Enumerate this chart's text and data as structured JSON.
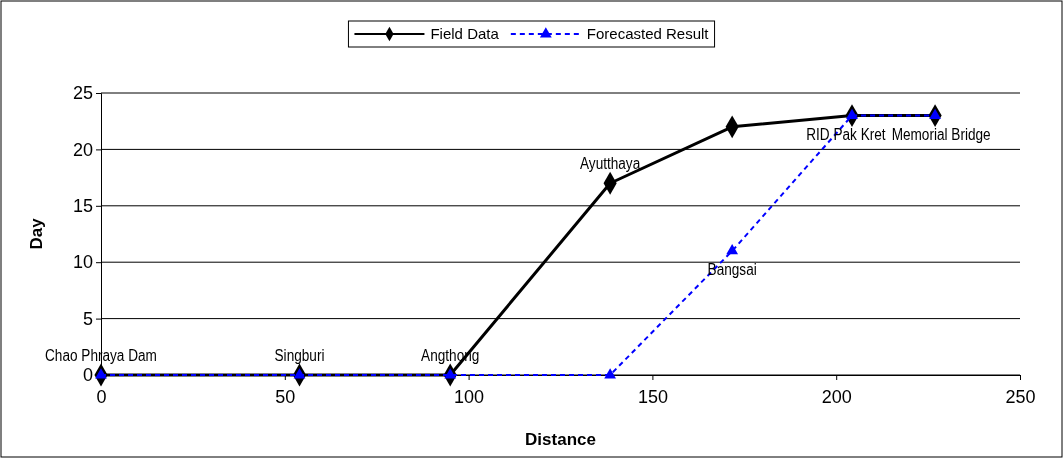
{
  "chart_data": {
    "type": "line",
    "xlabel": "Distance",
    "ylabel": "Day",
    "xlim": [
      0,
      250
    ],
    "xticks": [
      0,
      50,
      100,
      150,
      200,
      250
    ],
    "ylim": [
      0,
      25
    ],
    "yticks": [
      0,
      5,
      10,
      15,
      20,
      25
    ],
    "grid": "y",
    "legend": "top",
    "series": [
      {
        "name": "Field Data",
        "color": "#000000",
        "marker": "diamond",
        "line_style": "solid",
        "x": [
          0,
          54,
          95,
          138.5,
          171.7,
          204.3,
          226.9
        ],
        "values": [
          0,
          0,
          0,
          17,
          22,
          23,
          23
        ]
      },
      {
        "name": "Forecasted Result",
        "color": "#0000ff",
        "marker": "triangle",
        "line_style": "dashed",
        "x": [
          0,
          54,
          95,
          138.5,
          171.7,
          204.3,
          226.9
        ],
        "values": [
          0,
          0,
          0,
          0,
          11,
          23,
          23
        ]
      }
    ],
    "annotations": [
      {
        "text": "Chao Phraya Dam",
        "x": 0,
        "y": 0
      },
      {
        "text": "Singburi",
        "x": 54,
        "y": 0
      },
      {
        "text": "Angthong",
        "x": 95,
        "y": 0
      },
      {
        "text": "Ayutthaya",
        "x": 138.5,
        "y": 17
      },
      {
        "text": "Bangsai",
        "x": 171.7,
        "y": 11
      },
      {
        "text": "RID Pak Kret",
        "x": 204.3,
        "y": 23
      },
      {
        "text": "Memorial Bridge",
        "x": 226.9,
        "y": 23
      }
    ]
  }
}
